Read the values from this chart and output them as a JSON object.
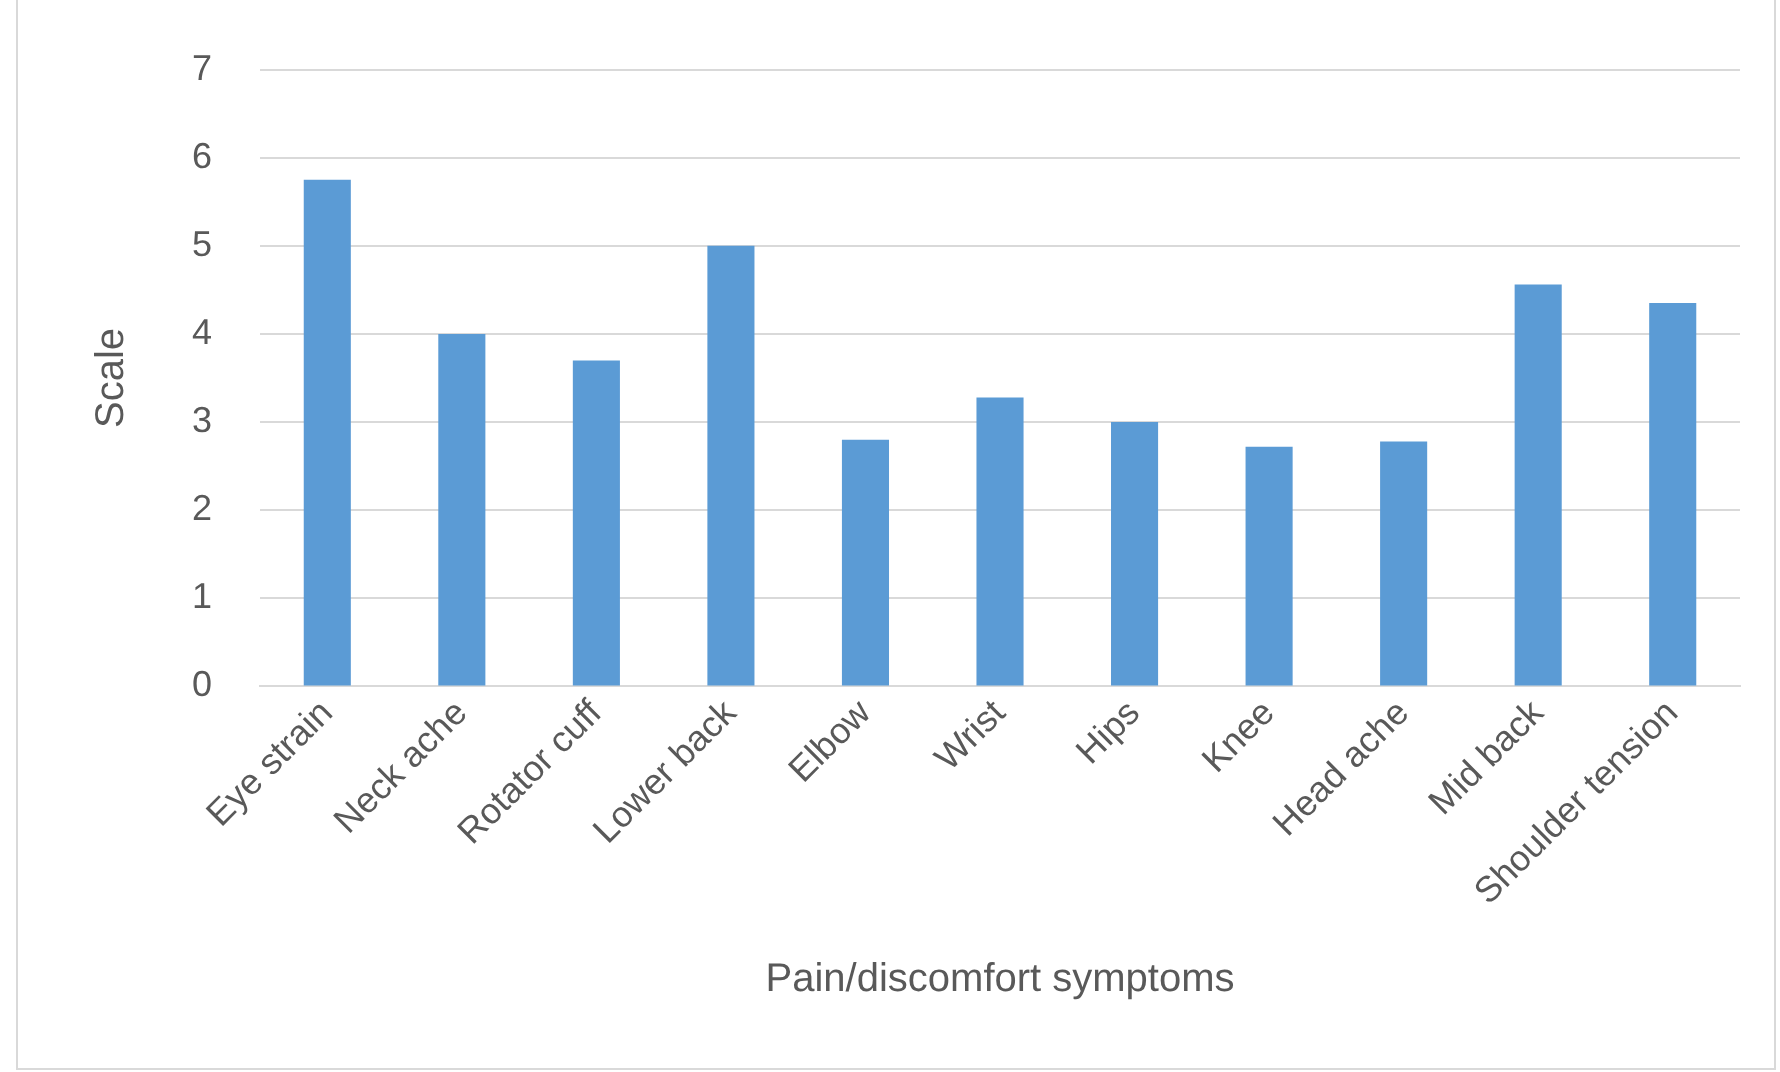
{
  "chart_data": {
    "type": "bar",
    "xlabel": "Pain/discomfort symptoms",
    "ylabel": "Scale",
    "categories": [
      "Eye strain",
      "Neck ache",
      "Rotator cuff",
      "Lower back",
      "Elbow",
      "Wrist",
      "Hips",
      "Knee",
      "Head ache",
      "Mid back",
      "Shoulder tension"
    ],
    "values": [
      5.75,
      4.0,
      3.7,
      5.0,
      2.8,
      3.28,
      3.0,
      2.72,
      2.78,
      4.56,
      4.35
    ],
    "color": "#5b9bd5",
    "ylim": [
      0,
      7
    ],
    "yticks": [
      0,
      1,
      2,
      3,
      4,
      5,
      6,
      7
    ],
    "grid": "y",
    "legend": false
  }
}
